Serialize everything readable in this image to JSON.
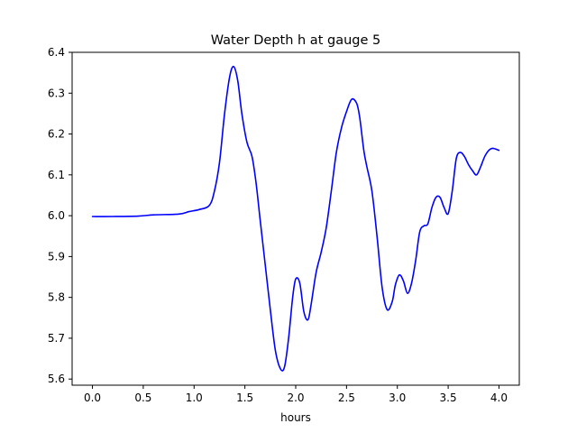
{
  "chart_data": {
    "type": "line",
    "title": "Water Depth h at gauge 5",
    "xlabel": "hours",
    "ylabel": "",
    "xlim": [
      -0.2,
      4.2
    ],
    "ylim": [
      5.585,
      6.4
    ],
    "xticks": [
      0.0,
      0.5,
      1.0,
      1.5,
      2.0,
      2.5,
      3.0,
      3.5,
      4.0
    ],
    "xtick_labels": [
      "0.0",
      "0.5",
      "1.0",
      "1.5",
      "2.0",
      "2.5",
      "3.0",
      "3.5",
      "4.0"
    ],
    "yticks": [
      5.6,
      5.7,
      5.8,
      5.9,
      6.0,
      6.1,
      6.2,
      6.3,
      6.4
    ],
    "ytick_labels": [
      "5.6",
      "5.7",
      "5.8",
      "5.9",
      "6.0",
      "6.1",
      "6.2",
      "6.3",
      "6.4"
    ],
    "grid": false,
    "legend": "none",
    "series": [
      {
        "color": "#0000ff",
        "x": [
          0.0,
          0.2,
          0.45,
          0.6,
          0.85,
          0.95,
          1.05,
          1.15,
          1.2,
          1.25,
          1.3,
          1.35,
          1.39,
          1.43,
          1.47,
          1.52,
          1.57,
          1.61,
          1.65,
          1.7,
          1.75,
          1.8,
          1.85,
          1.89,
          1.93,
          1.97,
          2.0,
          2.04,
          2.08,
          2.12,
          2.15,
          2.2,
          2.25,
          2.3,
          2.35,
          2.4,
          2.45,
          2.5,
          2.55,
          2.6,
          2.63,
          2.67,
          2.7,
          2.75,
          2.8,
          2.85,
          2.9,
          2.95,
          2.98,
          3.02,
          3.06,
          3.1,
          3.14,
          3.18,
          3.22,
          3.26,
          3.3,
          3.34,
          3.38,
          3.42,
          3.46,
          3.5,
          3.54,
          3.58,
          3.62,
          3.66,
          3.7,
          3.74,
          3.78,
          3.82,
          3.86,
          3.9,
          3.94,
          4.0
        ],
        "y": [
          5.998,
          5.998,
          5.999,
          6.002,
          6.004,
          6.01,
          6.015,
          6.025,
          6.06,
          6.13,
          6.25,
          6.34,
          6.365,
          6.33,
          6.25,
          6.18,
          6.145,
          6.08,
          5.99,
          5.88,
          5.77,
          5.67,
          5.625,
          5.63,
          5.7,
          5.8,
          5.845,
          5.835,
          5.765,
          5.745,
          5.78,
          5.86,
          5.91,
          5.97,
          6.06,
          6.155,
          6.215,
          6.255,
          6.285,
          6.275,
          6.24,
          6.16,
          6.12,
          6.06,
          5.95,
          5.825,
          5.77,
          5.79,
          5.83,
          5.855,
          5.84,
          5.81,
          5.835,
          5.89,
          5.96,
          5.975,
          5.98,
          6.02,
          6.045,
          6.045,
          6.02,
          6.005,
          6.06,
          6.14,
          6.155,
          6.145,
          6.125,
          6.11,
          6.1,
          6.12,
          6.145,
          6.16,
          6.165,
          6.16
        ]
      }
    ]
  }
}
